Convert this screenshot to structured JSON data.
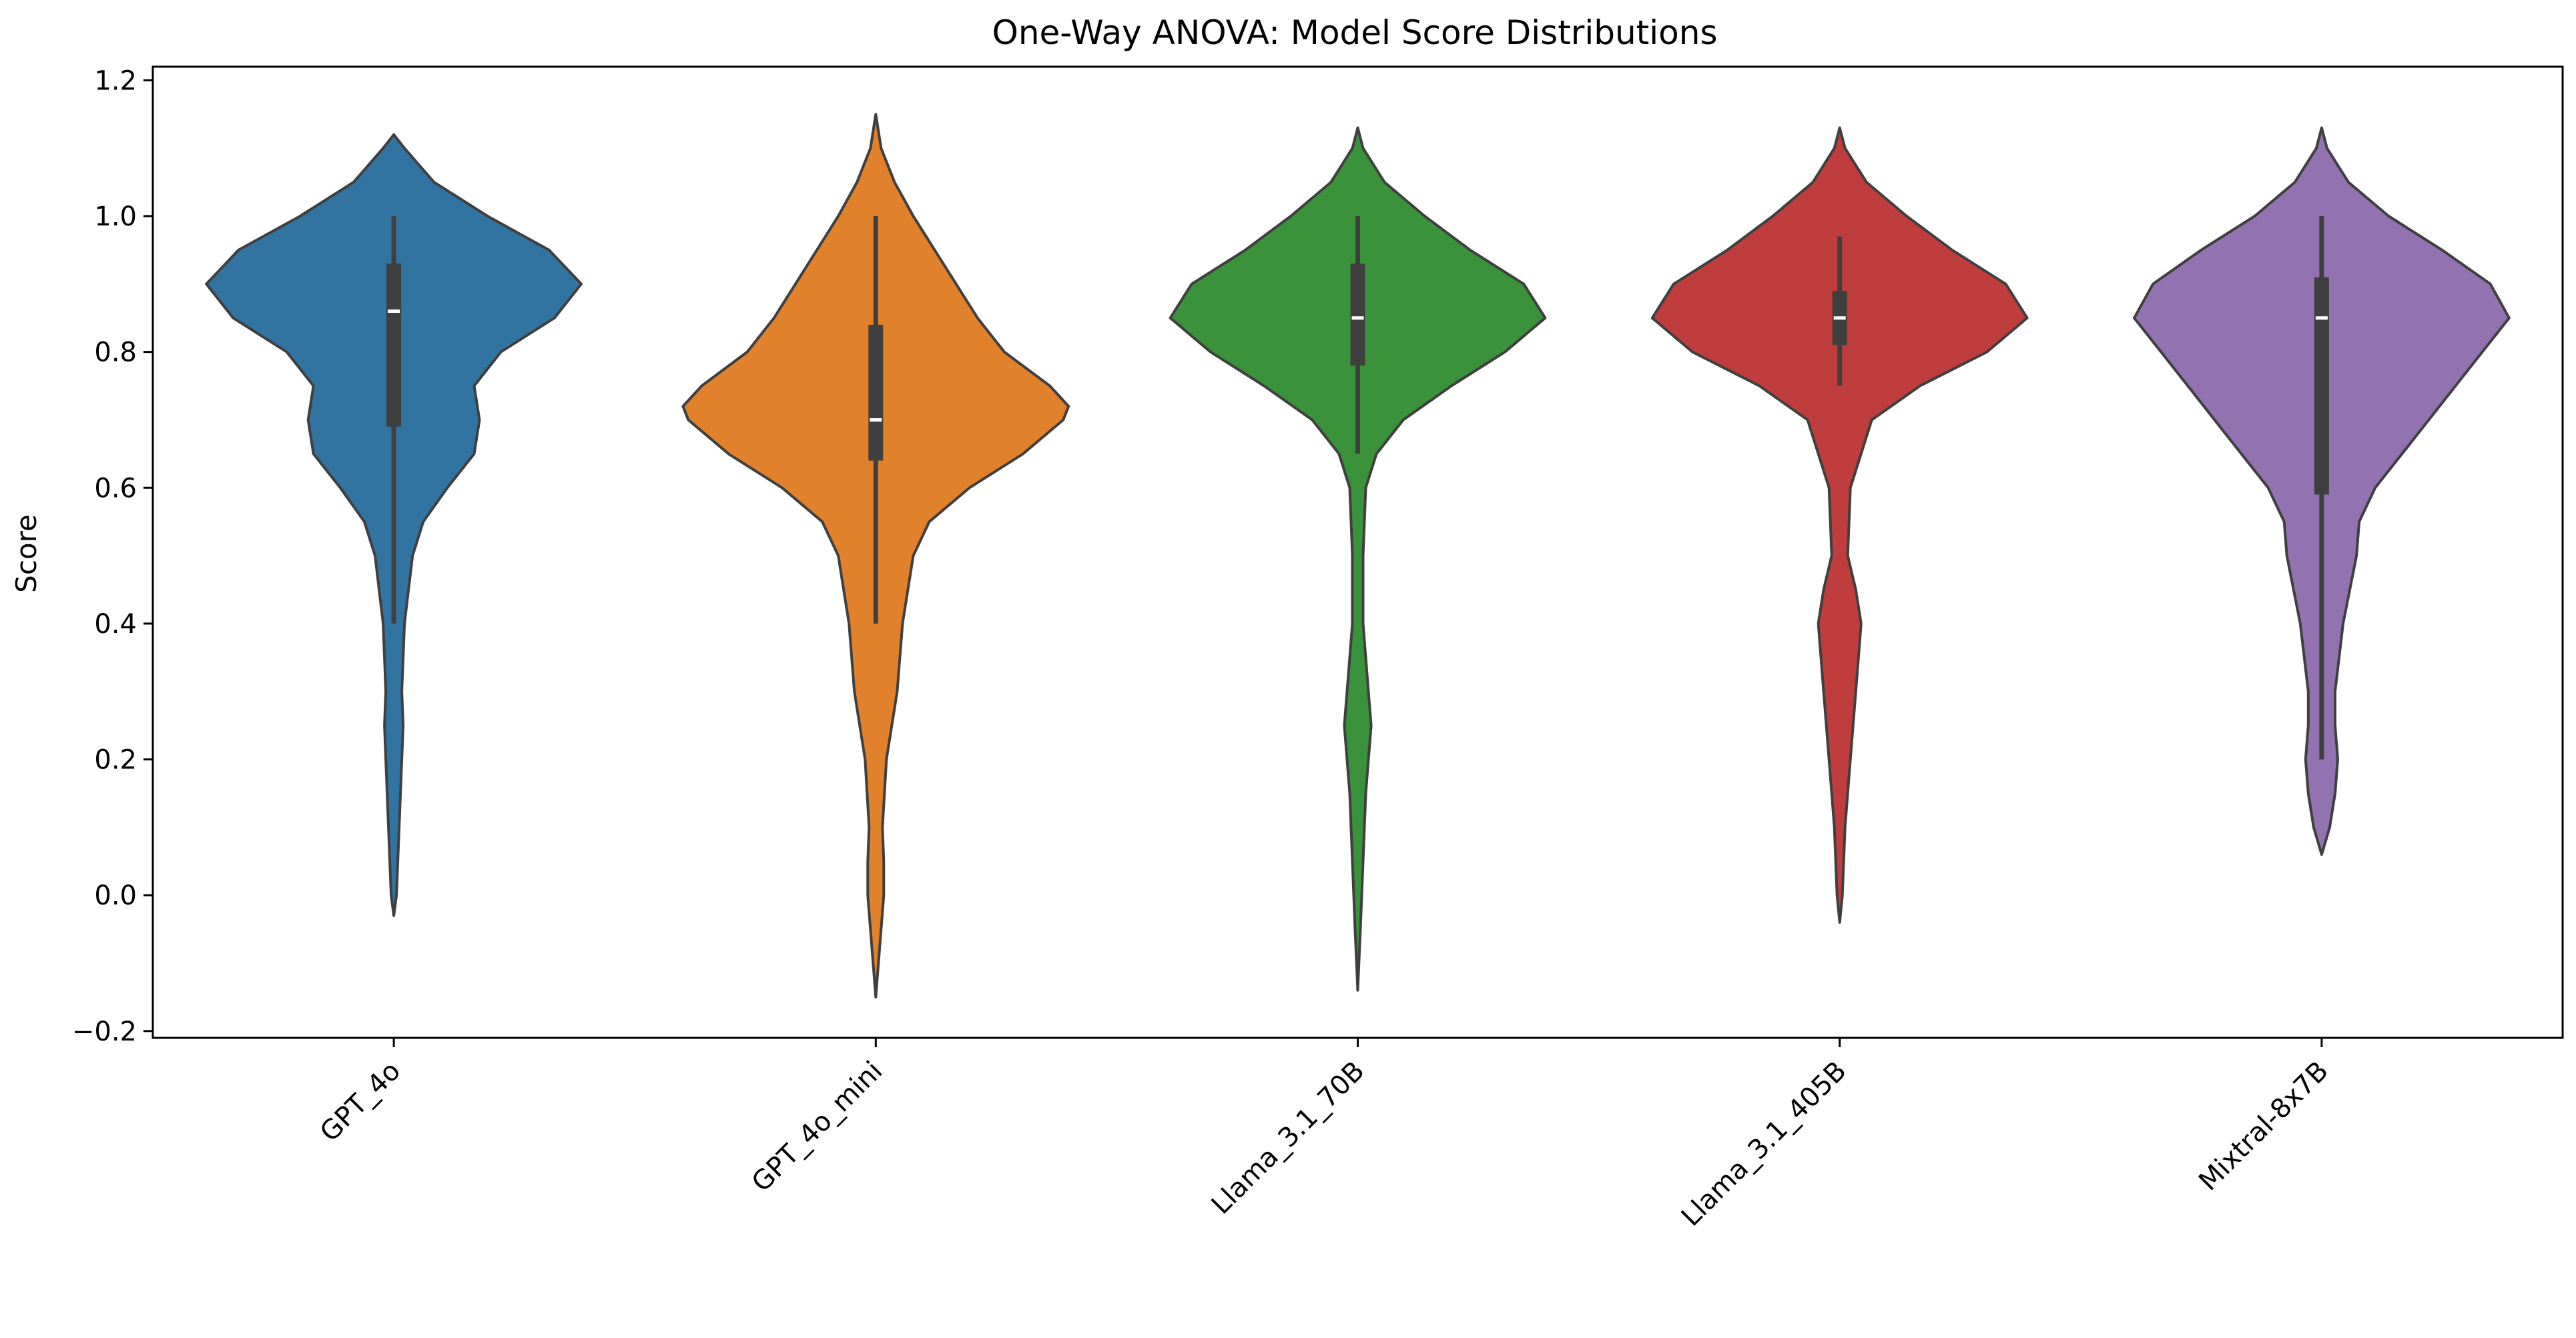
{
  "chart_data": {
    "type": "violin",
    "title": "One-Way ANOVA: Model Score Distributions",
    "xlabel": "",
    "ylabel": "Score",
    "ylim": [
      -0.21,
      1.22
    ],
    "yticks": [
      -0.2,
      0.0,
      0.2,
      0.4,
      0.6,
      0.8,
      1.0,
      1.2
    ],
    "ytick_labels": [
      "−0.2",
      "0.0",
      "0.2",
      "0.4",
      "0.6",
      "0.8",
      "1.0",
      "1.2"
    ],
    "grid": false,
    "legend": "none",
    "categories": [
      "GPT_4o",
      "GPT_4o_mini",
      "Llama_3.1_70B",
      "Llama_3.1_405B",
      "Mixtral-8x7B"
    ],
    "colors": [
      "#3274a1",
      "#e1812c",
      "#3a923a",
      "#c03d3e",
      "#9372b2"
    ],
    "series": [
      {
        "category": "GPT_4o",
        "whisker": [
          0.4,
          1.0
        ],
        "q1": 0.69,
        "median": 0.86,
        "q3": 0.93,
        "range": [
          -0.03,
          1.12
        ],
        "density": [
          [
            -0.03,
            0.0
          ],
          [
            0.0,
            0.01
          ],
          [
            0.1,
            0.02
          ],
          [
            0.2,
            0.03
          ],
          [
            0.25,
            0.035
          ],
          [
            0.3,
            0.03
          ],
          [
            0.4,
            0.04
          ],
          [
            0.5,
            0.07
          ],
          [
            0.55,
            0.11
          ],
          [
            0.6,
            0.2
          ],
          [
            0.65,
            0.3
          ],
          [
            0.7,
            0.32
          ],
          [
            0.75,
            0.3
          ],
          [
            0.8,
            0.4
          ],
          [
            0.85,
            0.6
          ],
          [
            0.9,
            0.7
          ],
          [
            0.95,
            0.58
          ],
          [
            1.0,
            0.35
          ],
          [
            1.05,
            0.15
          ],
          [
            1.1,
            0.04
          ],
          [
            1.12,
            0.0
          ]
        ]
      },
      {
        "category": "GPT_4o_mini",
        "whisker": [
          0.4,
          1.0
        ],
        "q1": 0.64,
        "median": 0.7,
        "q3": 0.84,
        "range": [
          -0.15,
          1.15
        ],
        "density": [
          [
            -0.15,
            0.0
          ],
          [
            -0.1,
            0.01
          ],
          [
            -0.05,
            0.02
          ],
          [
            0.0,
            0.03
          ],
          [
            0.05,
            0.03
          ],
          [
            0.1,
            0.025
          ],
          [
            0.2,
            0.04
          ],
          [
            0.3,
            0.08
          ],
          [
            0.4,
            0.1
          ],
          [
            0.5,
            0.14
          ],
          [
            0.55,
            0.2
          ],
          [
            0.6,
            0.35
          ],
          [
            0.65,
            0.55
          ],
          [
            0.7,
            0.7
          ],
          [
            0.72,
            0.72
          ],
          [
            0.75,
            0.65
          ],
          [
            0.8,
            0.48
          ],
          [
            0.85,
            0.38
          ],
          [
            0.9,
            0.3
          ],
          [
            0.95,
            0.22
          ],
          [
            1.0,
            0.14
          ],
          [
            1.05,
            0.07
          ],
          [
            1.1,
            0.02
          ],
          [
            1.15,
            0.0
          ]
        ]
      },
      {
        "category": "Llama_3.1_70B",
        "whisker": [
          0.65,
          1.0
        ],
        "q1": 0.78,
        "median": 0.85,
        "q3": 0.93,
        "range": [
          -0.14,
          1.13
        ],
        "density": [
          [
            -0.14,
            0.0
          ],
          [
            -0.05,
            0.01
          ],
          [
            0.05,
            0.02
          ],
          [
            0.15,
            0.03
          ],
          [
            0.25,
            0.05
          ],
          [
            0.3,
            0.04
          ],
          [
            0.4,
            0.02
          ],
          [
            0.5,
            0.02
          ],
          [
            0.6,
            0.03
          ],
          [
            0.65,
            0.07
          ],
          [
            0.7,
            0.17
          ],
          [
            0.75,
            0.35
          ],
          [
            0.8,
            0.55
          ],
          [
            0.85,
            0.7
          ],
          [
            0.9,
            0.62
          ],
          [
            0.95,
            0.42
          ],
          [
            1.0,
            0.25
          ],
          [
            1.05,
            0.1
          ],
          [
            1.1,
            0.02
          ],
          [
            1.13,
            0.0
          ]
        ]
      },
      {
        "category": "Llama_3.1_405B",
        "whisker": [
          0.75,
          0.97
        ],
        "q1": 0.81,
        "median": 0.85,
        "q3": 0.89,
        "range": [
          -0.04,
          1.13
        ],
        "density": [
          [
            -0.04,
            0.0
          ],
          [
            0.0,
            0.01
          ],
          [
            0.1,
            0.02
          ],
          [
            0.2,
            0.04
          ],
          [
            0.3,
            0.06
          ],
          [
            0.35,
            0.07
          ],
          [
            0.4,
            0.08
          ],
          [
            0.45,
            0.06
          ],
          [
            0.5,
            0.03
          ],
          [
            0.6,
            0.04
          ],
          [
            0.7,
            0.12
          ],
          [
            0.75,
            0.3
          ],
          [
            0.8,
            0.55
          ],
          [
            0.85,
            0.7
          ],
          [
            0.9,
            0.62
          ],
          [
            0.95,
            0.42
          ],
          [
            1.0,
            0.25
          ],
          [
            1.05,
            0.1
          ],
          [
            1.1,
            0.02
          ],
          [
            1.13,
            0.0
          ]
        ]
      },
      {
        "category": "Mixtral-8x7B",
        "whisker": [
          0.2,
          1.0
        ],
        "q1": 0.59,
        "median": 0.85,
        "q3": 0.91,
        "range": [
          0.06,
          1.13
        ],
        "density": [
          [
            0.06,
            0.0
          ],
          [
            0.1,
            0.03
          ],
          [
            0.15,
            0.05
          ],
          [
            0.2,
            0.06
          ],
          [
            0.25,
            0.05
          ],
          [
            0.3,
            0.05
          ],
          [
            0.4,
            0.08
          ],
          [
            0.5,
            0.13
          ],
          [
            0.55,
            0.14
          ],
          [
            0.6,
            0.2
          ],
          [
            0.65,
            0.3
          ],
          [
            0.7,
            0.4
          ],
          [
            0.75,
            0.5
          ],
          [
            0.8,
            0.6
          ],
          [
            0.85,
            0.7
          ],
          [
            0.9,
            0.63
          ],
          [
            0.95,
            0.45
          ],
          [
            1.0,
            0.25
          ],
          [
            1.05,
            0.1
          ],
          [
            1.1,
            0.02
          ],
          [
            1.13,
            0.0
          ]
        ]
      }
    ]
  }
}
